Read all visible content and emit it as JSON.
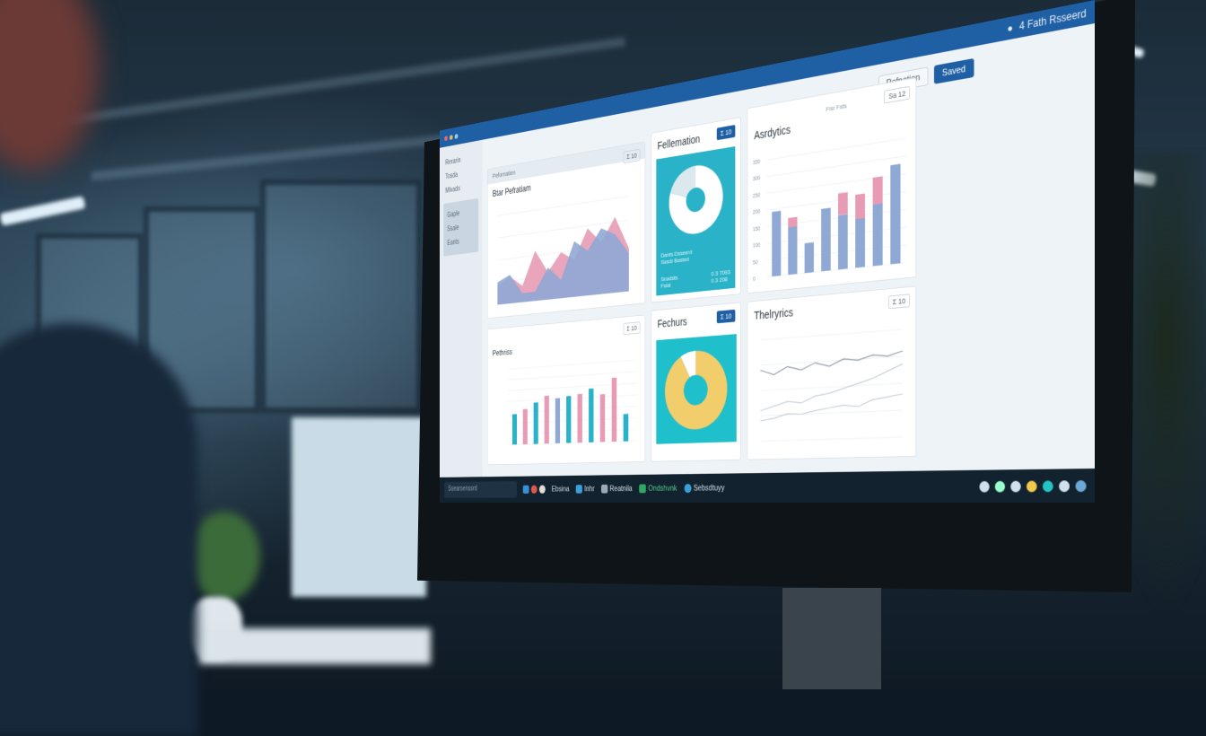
{
  "window": {
    "title": "4 Fath Rsseerd",
    "colors": {
      "accent": "#1f5fa3",
      "pink": "#e79bb5",
      "blue": "#8fa9d4",
      "teal": "#2ab3c8",
      "yellow": "#f2cd6b"
    }
  },
  "toolbar": {
    "secondary_label": "Pefpation",
    "primary_label": "Saved"
  },
  "sidebar": {
    "items": [
      "Rerarin",
      "Tosda",
      "Mlvads"
    ],
    "selected": [
      "Gaple",
      "Ssale",
      "Eants"
    ]
  },
  "panels": {
    "area": {
      "title": "Btar Pefratiam",
      "badge": "Σ 10",
      "header": "Pefornatien",
      "series": [
        {
          "color": "#e79bb5",
          "values": [
            20,
            30,
            18,
            55,
            30,
            50,
            40,
            72,
            55,
            80,
            45
          ]
        },
        {
          "color": "#8fa9d4",
          "values": [
            25,
            32,
            10,
            10,
            35,
            20,
            60,
            48,
            70,
            62,
            40
          ]
        }
      ]
    },
    "donut1": {
      "title": "Fellemation",
      "badge": "Σ 10",
      "legend": [
        "Dants Dsseerd",
        "Sasdr Basted"
      ],
      "footer_left": [
        "Snadsts",
        "Fsial"
      ],
      "footer_right": [
        "0.3 7093",
        "0.3 208"
      ],
      "values": [
        80,
        20
      ]
    },
    "bars1": {
      "title": "Asrdytics",
      "badge": "Sa 12",
      "subtitle": "Fisr Fsts",
      "yticks": [
        "0",
        "50",
        "100",
        "150",
        "200",
        "250",
        "300",
        "350"
      ],
      "stacked": [
        [
          55,
          0
        ],
        [
          40,
          8
        ],
        [
          25,
          0
        ],
        [
          52,
          0
        ],
        [
          45,
          18
        ],
        [
          40,
          20
        ],
        [
          50,
          22
        ],
        [
          80,
          0
        ]
      ],
      "colors": [
        "#8fa9d4",
        "#e79bb5"
      ]
    },
    "bars2": {
      "title": "Pethriss",
      "badge": "Σ 10",
      "values": [
        40,
        46,
        54,
        62,
        58,
        60,
        62,
        68,
        60,
        80,
        34
      ],
      "colors": [
        "#2ab3c8",
        "#e79bb5",
        "#2ab3c8",
        "#e79bb5",
        "#8fa9d4",
        "#2ab3c8",
        "#e79bb5",
        "#2ab3c8",
        "#e79bb5",
        "#e79bb5",
        "#2ab3c8"
      ]
    },
    "donut2": {
      "title": "Fechurs",
      "badge": "Σ 10",
      "values": [
        92,
        8
      ]
    },
    "lines": {
      "title": "Thelryrics",
      "badge": "Σ 10",
      "series": [
        [
          70,
          65,
          72,
          68,
          74,
          70,
          76,
          74,
          78,
          76,
          80
        ],
        [
          30,
          34,
          38,
          36,
          42,
          44,
          48,
          52,
          56,
          62,
          68
        ],
        [
          20,
          22,
          26,
          25,
          28,
          30,
          32,
          30,
          36,
          38,
          40
        ]
      ]
    }
  },
  "taskbar": {
    "search_placeholder": "Ssearsenssrd",
    "apps": [
      "Ebsina",
      "Inhr",
      "Reatnila",
      "Ondshvnk",
      "Sebsdtuyy"
    ]
  }
}
